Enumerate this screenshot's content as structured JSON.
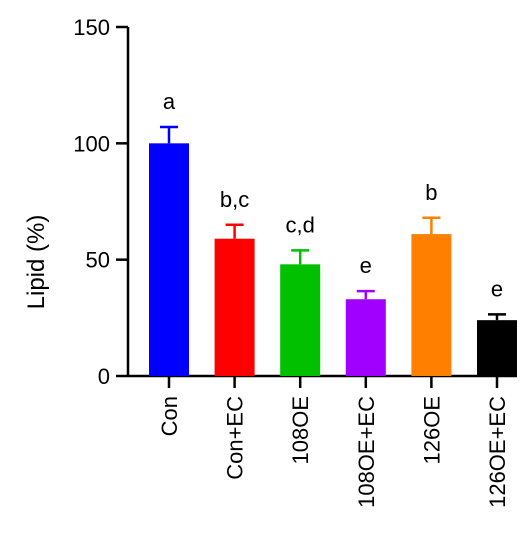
{
  "chart_data": {
    "type": "bar",
    "title": "",
    "xlabel": "",
    "ylabel": "Lipid (%)",
    "ylim": [
      0,
      150
    ],
    "yticks": [
      0,
      50,
      100,
      150
    ],
    "grid": false,
    "categories": [
      "Con",
      "Con+EC",
      "108OE",
      "108OE+EC",
      "126OE",
      "126OE+EC"
    ],
    "values": [
      100,
      59,
      48,
      33,
      61,
      24
    ],
    "errors": [
      7,
      6,
      6,
      3.5,
      7,
      2.5
    ],
    "significance": [
      "a",
      "b,c",
      "c,d",
      "e",
      "b",
      "e"
    ],
    "colors": [
      "#0000ff",
      "#ff0000",
      "#00c000",
      "#a000ff",
      "#ff8000",
      "#000000"
    ]
  }
}
